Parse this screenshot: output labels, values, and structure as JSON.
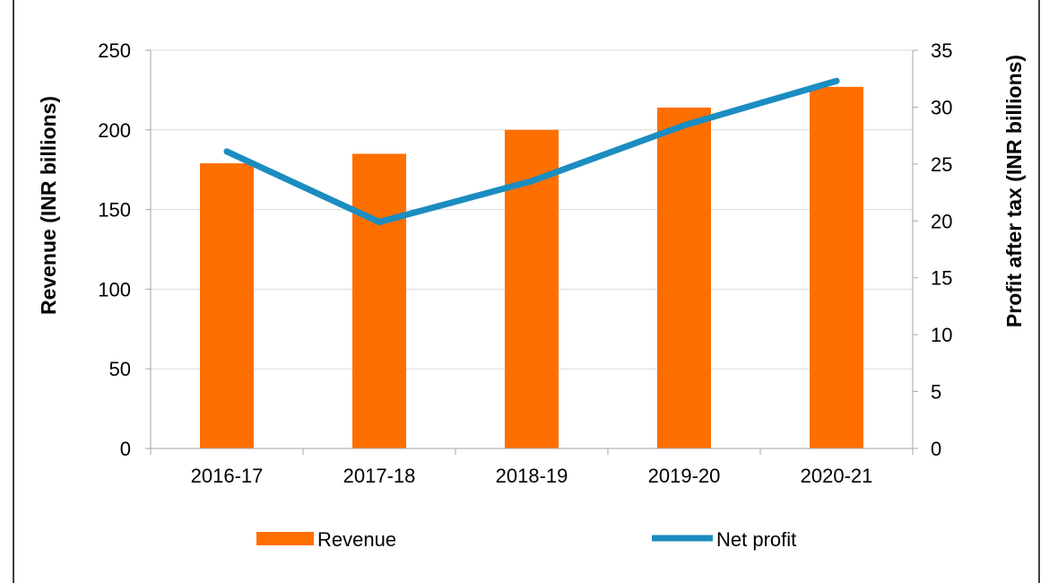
{
  "chart_data": {
    "type": "bar",
    "categories": [
      "2016-17",
      "2017-18",
      "2018-19",
      "2019-20",
      "2020-21"
    ],
    "series": [
      {
        "name": "Revenue",
        "type": "bar",
        "axis": "left",
        "color": "#FF6F00",
        "values": [
          179,
          185,
          200,
          214,
          227
        ]
      },
      {
        "name": "Net profit",
        "type": "line",
        "axis": "right",
        "color": "#1B8DC0",
        "values": [
          26.1,
          19.9,
          23.5,
          28.4,
          32.3
        ]
      }
    ],
    "ylabel": "Revenue (INR billions)",
    "y2label": "Profit after tax (INR billions)",
    "ylim": [
      0,
      250
    ],
    "y_ticks": [
      "0",
      "50",
      "100",
      "150",
      "200",
      "250"
    ],
    "y2lim": [
      0,
      35
    ],
    "y2_ticks": [
      "0",
      "5",
      "10",
      "15",
      "20",
      "25",
      "30",
      "35"
    ],
    "grid": "horizontal",
    "legend_position": "bottom"
  }
}
